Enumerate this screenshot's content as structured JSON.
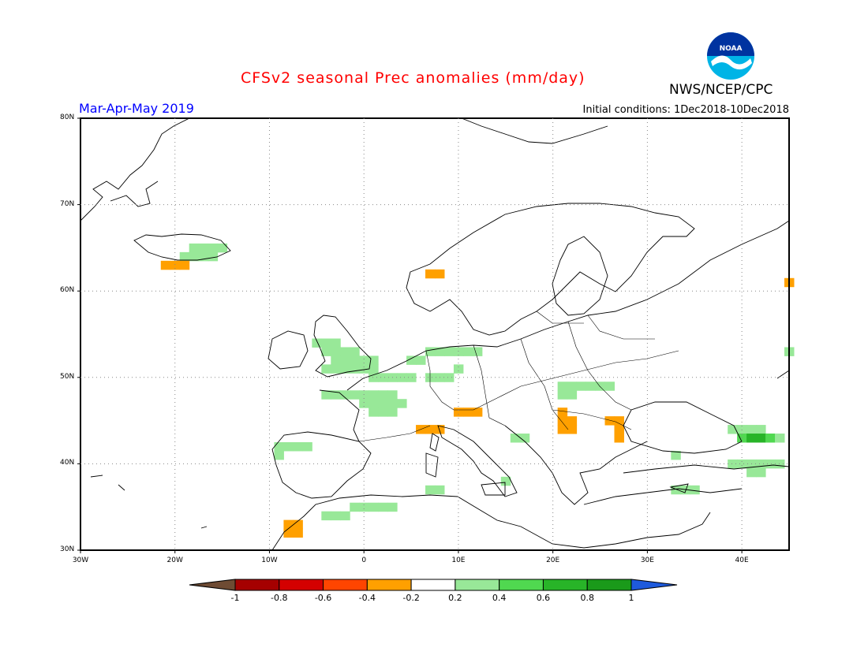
{
  "header": {
    "title": "CFSv2 seasonal Prec anomalies (mm/day)",
    "title_color": "#ff0000",
    "season": "Mar-Apr-May 2019",
    "season_color": "#0000ff",
    "initial_conditions": "Initial conditions: 1Dec2018-10Dec2018",
    "agency": "NWS/NCEP/CPC",
    "logo_text": "NOAA"
  },
  "axes": {
    "lat_labels": [
      "80N",
      "70N",
      "60N",
      "50N",
      "40N",
      "30N"
    ],
    "lon_labels": [
      "30W",
      "20W",
      "10W",
      "0",
      "10E",
      "20E",
      "30E",
      "40E"
    ],
    "lat_range": [
      30,
      80
    ],
    "lon_range": [
      -30,
      45
    ],
    "grid": true
  },
  "colorbar": {
    "labels": [
      "-1",
      "-0.8",
      "-0.6",
      "-0.4",
      "-0.2",
      "0.2",
      "0.4",
      "0.6",
      "0.8",
      "1"
    ],
    "colors": [
      "#6e4b33",
      "#a50000",
      "#d40000",
      "#ff4500",
      "#ffa000",
      "#ffffff",
      "#98e898",
      "#50d850",
      "#28b428",
      "#1a9a1a",
      "#1e5adc"
    ]
  },
  "chart_data": {
    "type": "heatmap",
    "title": "CFSv2 seasonal Prec anomalies (mm/day)",
    "subtitle": "Mar-Apr-May 2019",
    "units": "mm/day",
    "xlim": [
      -30,
      45
    ],
    "ylim": [
      30,
      80
    ],
    "cells_deg_1": [
      {
        "lon": -19,
        "lat": 64,
        "v": 0.3
      },
      {
        "lon": -18,
        "lat": 64,
        "v": 0.3
      },
      {
        "lon": -17,
        "lat": 64,
        "v": 0.3
      },
      {
        "lon": -16,
        "lat": 64,
        "v": 0.3
      },
      {
        "lon": -18,
        "lat": 65,
        "v": 0.3
      },
      {
        "lon": -17,
        "lat": 65,
        "v": 0.3
      },
      {
        "lon": -16,
        "lat": 65,
        "v": 0.3
      },
      {
        "lon": -15,
        "lat": 65,
        "v": 0.3
      },
      {
        "lon": -21,
        "lat": 63,
        "v": -0.3
      },
      {
        "lon": -20,
        "lat": 63,
        "v": -0.3
      },
      {
        "lon": -19,
        "lat": 63,
        "v": -0.3
      },
      {
        "lon": 7,
        "lat": 62,
        "v": -0.3
      },
      {
        "lon": 8,
        "lat": 62,
        "v": -0.3
      },
      {
        "lon": -5,
        "lat": 54,
        "v": 0.3
      },
      {
        "lon": -4,
        "lat": 54,
        "v": 0.3
      },
      {
        "lon": -3,
        "lat": 54,
        "v": 0.3
      },
      {
        "lon": -4,
        "lat": 53,
        "v": 0.3
      },
      {
        "lon": -3,
        "lat": 53,
        "v": 0.3
      },
      {
        "lon": -2,
        "lat": 53,
        "v": 0.3
      },
      {
        "lon": -1,
        "lat": 53,
        "v": 0.3
      },
      {
        "lon": -3,
        "lat": 52,
        "v": 0.3
      },
      {
        "lon": -2,
        "lat": 52,
        "v": 0.3
      },
      {
        "lon": -1,
        "lat": 52,
        "v": 0.3
      },
      {
        "lon": 0,
        "lat": 52,
        "v": 0.3
      },
      {
        "lon": 1,
        "lat": 52,
        "v": 0.3
      },
      {
        "lon": -4,
        "lat": 51,
        "v": 0.3
      },
      {
        "lon": -3,
        "lat": 51,
        "v": 0.3
      },
      {
        "lon": -2,
        "lat": 51,
        "v": 0.3
      },
      {
        "lon": -1,
        "lat": 51,
        "v": 0.3
      },
      {
        "lon": 0,
        "lat": 51,
        "v": 0.3
      },
      {
        "lon": 1,
        "lat": 51,
        "v": 0.3
      },
      {
        "lon": 5,
        "lat": 52,
        "v": 0.3
      },
      {
        "lon": 6,
        "lat": 52,
        "v": 0.3
      },
      {
        "lon": 7,
        "lat": 53,
        "v": 0.3
      },
      {
        "lon": 8,
        "lat": 53,
        "v": 0.3
      },
      {
        "lon": 9,
        "lat": 53,
        "v": 0.3
      },
      {
        "lon": 10,
        "lat": 53,
        "v": 0.3
      },
      {
        "lon": 11,
        "lat": 53,
        "v": 0.3
      },
      {
        "lon": 12,
        "lat": 53,
        "v": 0.3
      },
      {
        "lon": 1,
        "lat": 50,
        "v": 0.3
      },
      {
        "lon": 2,
        "lat": 50,
        "v": 0.3
      },
      {
        "lon": 3,
        "lat": 50,
        "v": 0.3
      },
      {
        "lon": 4,
        "lat": 50,
        "v": 0.3
      },
      {
        "lon": 5,
        "lat": 50,
        "v": 0.3
      },
      {
        "lon": -4,
        "lat": 48,
        "v": 0.3
      },
      {
        "lon": -3,
        "lat": 48,
        "v": 0.3
      },
      {
        "lon": -2,
        "lat": 48,
        "v": 0.3
      },
      {
        "lon": -1,
        "lat": 48,
        "v": 0.3
      },
      {
        "lon": 0,
        "lat": 48,
        "v": 0.3
      },
      {
        "lon": 1,
        "lat": 48,
        "v": 0.3
      },
      {
        "lon": 2,
        "lat": 48,
        "v": 0.3
      },
      {
        "lon": 3,
        "lat": 48,
        "v": 0.3
      },
      {
        "lon": 0,
        "lat": 47,
        "v": 0.3
      },
      {
        "lon": 1,
        "lat": 47,
        "v": 0.3
      },
      {
        "lon": 2,
        "lat": 47,
        "v": 0.3
      },
      {
        "lon": 3,
        "lat": 47,
        "v": 0.3
      },
      {
        "lon": 4,
        "lat": 47,
        "v": 0.3
      },
      {
        "lon": 1,
        "lat": 46,
        "v": 0.3
      },
      {
        "lon": 2,
        "lat": 46,
        "v": 0.3
      },
      {
        "lon": 3,
        "lat": 46,
        "v": 0.3
      },
      {
        "lon": 7,
        "lat": 50,
        "v": 0.3
      },
      {
        "lon": 8,
        "lat": 50,
        "v": 0.3
      },
      {
        "lon": 9,
        "lat": 50,
        "v": 0.3
      },
      {
        "lon": 10,
        "lat": 51,
        "v": 0.3
      },
      {
        "lon": 21,
        "lat": 49,
        "v": 0.3
      },
      {
        "lon": 22,
        "lat": 49,
        "v": 0.3
      },
      {
        "lon": 23,
        "lat": 49,
        "v": 0.3
      },
      {
        "lon": 24,
        "lat": 49,
        "v": 0.3
      },
      {
        "lon": 25,
        "lat": 49,
        "v": 0.3
      },
      {
        "lon": 26,
        "lat": 49,
        "v": 0.3
      },
      {
        "lon": 21,
        "lat": 48,
        "v": 0.3
      },
      {
        "lon": 22,
        "lat": 48,
        "v": 0.3
      },
      {
        "lon": 16,
        "lat": 43,
        "v": 0.3
      },
      {
        "lon": 17,
        "lat": 43,
        "v": 0.3
      },
      {
        "lon": -9,
        "lat": 42,
        "v": 0.3
      },
      {
        "lon": -8,
        "lat": 42,
        "v": 0.3
      },
      {
        "lon": -7,
        "lat": 42,
        "v": 0.3
      },
      {
        "lon": -6,
        "lat": 42,
        "v": 0.3
      },
      {
        "lon": -9,
        "lat": 41,
        "v": 0.3
      },
      {
        "lon": -4,
        "lat": 34,
        "v": 0.3
      },
      {
        "lon": -3,
        "lat": 34,
        "v": 0.3
      },
      {
        "lon": -2,
        "lat": 34,
        "v": 0.3
      },
      {
        "lon": -1,
        "lat": 35,
        "v": 0.3
      },
      {
        "lon": 0,
        "lat": 35,
        "v": 0.3
      },
      {
        "lon": 1,
        "lat": 35,
        "v": 0.3
      },
      {
        "lon": 2,
        "lat": 35,
        "v": 0.3
      },
      {
        "lon": 3,
        "lat": 35,
        "v": 0.3
      },
      {
        "lon": 7,
        "lat": 37,
        "v": 0.3
      },
      {
        "lon": 8,
        "lat": 37,
        "v": 0.3
      },
      {
        "lon": 15,
        "lat": 38,
        "v": 0.3
      },
      {
        "lon": 33,
        "lat": 41,
        "v": 0.3
      },
      {
        "lon": 33,
        "lat": 37,
        "v": 0.3
      },
      {
        "lon": 34,
        "lat": 37,
        "v": 0.3
      },
      {
        "lon": 35,
        "lat": 37,
        "v": 0.3
      },
      {
        "lon": 39,
        "lat": 44,
        "v": 0.3
      },
      {
        "lon": 40,
        "lat": 44,
        "v": 0.3
      },
      {
        "lon": 41,
        "lat": 44,
        "v": 0.3
      },
      {
        "lon": 42,
        "lat": 44,
        "v": 0.3
      },
      {
        "lon": 40,
        "lat": 43,
        "v": 0.5
      },
      {
        "lon": 41,
        "lat": 43,
        "v": 0.7
      },
      {
        "lon": 42,
        "lat": 43,
        "v": 0.7
      },
      {
        "lon": 43,
        "lat": 43,
        "v": 0.5
      },
      {
        "lon": 44,
        "lat": 43,
        "v": 0.3
      },
      {
        "lon": 39,
        "lat": 40,
        "v": 0.3
      },
      {
        "lon": 40,
        "lat": 40,
        "v": 0.3
      },
      {
        "lon": 41,
        "lat": 40,
        "v": 0.3
      },
      {
        "lon": 42,
        "lat": 40,
        "v": 0.3
      },
      {
        "lon": 43,
        "lat": 40,
        "v": 0.3
      },
      {
        "lon": 44,
        "lat": 40,
        "v": 0.3
      },
      {
        "lon": 41,
        "lat": 39,
        "v": 0.3
      },
      {
        "lon": 42,
        "lat": 39,
        "v": 0.3
      },
      {
        "lon": 45,
        "lat": 53,
        "v": 0.3
      },
      {
        "lon": 6,
        "lat": 44,
        "v": -0.3
      },
      {
        "lon": 7,
        "lat": 44,
        "v": -0.3
      },
      {
        "lon": 8,
        "lat": 44,
        "v": -0.3
      },
      {
        "lon": 10,
        "lat": 46,
        "v": -0.3
      },
      {
        "lon": 11,
        "lat": 46,
        "v": -0.3
      },
      {
        "lon": 12,
        "lat": 46,
        "v": -0.3
      },
      {
        "lon": 21,
        "lat": 46,
        "v": -0.3
      },
      {
        "lon": 21,
        "lat": 45,
        "v": -0.3
      },
      {
        "lon": 22,
        "lat": 45,
        "v": -0.3
      },
      {
        "lon": 21,
        "lat": 44,
        "v": -0.3
      },
      {
        "lon": 22,
        "lat": 44,
        "v": -0.3
      },
      {
        "lon": 26,
        "lat": 45,
        "v": -0.3
      },
      {
        "lon": 27,
        "lat": 45,
        "v": -0.3
      },
      {
        "lon": 27,
        "lat": 44,
        "v": -0.3
      },
      {
        "lon": 27,
        "lat": 43,
        "v": -0.3
      },
      {
        "lon": -8,
        "lat": 33,
        "v": -0.3
      },
      {
        "lon": -7,
        "lat": 33,
        "v": -0.3
      },
      {
        "lon": -7,
        "lat": 32,
        "v": -0.3
      },
      {
        "lon": -8,
        "lat": 32,
        "v": -0.3
      },
      {
        "lon": 45,
        "lat": 61,
        "v": -0.3
      }
    ]
  }
}
